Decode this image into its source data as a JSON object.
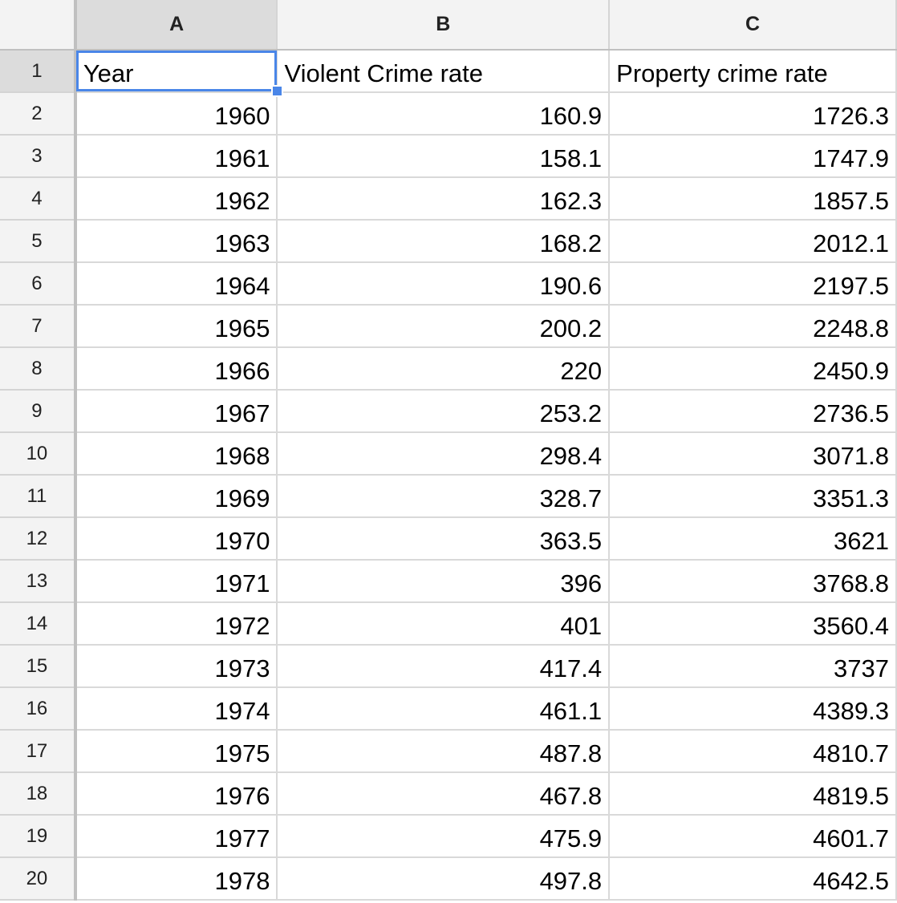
{
  "columns": [
    "A",
    "B",
    "C"
  ],
  "selected_cell": "A1",
  "accent_color": "#4a86e8",
  "rows": [
    {
      "num": "1",
      "cells": [
        "Year",
        "Violent Crime rate",
        "Property crime rate"
      ]
    },
    {
      "num": "2",
      "cells": [
        "1960",
        "160.9",
        "1726.3"
      ]
    },
    {
      "num": "3",
      "cells": [
        "1961",
        "158.1",
        "1747.9"
      ]
    },
    {
      "num": "4",
      "cells": [
        "1962",
        "162.3",
        "1857.5"
      ]
    },
    {
      "num": "5",
      "cells": [
        "1963",
        "168.2",
        "2012.1"
      ]
    },
    {
      "num": "6",
      "cells": [
        "1964",
        "190.6",
        "2197.5"
      ]
    },
    {
      "num": "7",
      "cells": [
        "1965",
        "200.2",
        "2248.8"
      ]
    },
    {
      "num": "8",
      "cells": [
        "1966",
        "220",
        "2450.9"
      ]
    },
    {
      "num": "9",
      "cells": [
        "1967",
        "253.2",
        "2736.5"
      ]
    },
    {
      "num": "10",
      "cells": [
        "1968",
        "298.4",
        "3071.8"
      ]
    },
    {
      "num": "11",
      "cells": [
        "1969",
        "328.7",
        "3351.3"
      ]
    },
    {
      "num": "12",
      "cells": [
        "1970",
        "363.5",
        "3621"
      ]
    },
    {
      "num": "13",
      "cells": [
        "1971",
        "396",
        "3768.8"
      ]
    },
    {
      "num": "14",
      "cells": [
        "1972",
        "401",
        "3560.4"
      ]
    },
    {
      "num": "15",
      "cells": [
        "1973",
        "417.4",
        "3737"
      ]
    },
    {
      "num": "16",
      "cells": [
        "1974",
        "461.1",
        "4389.3"
      ]
    },
    {
      "num": "17",
      "cells": [
        "1975",
        "487.8",
        "4810.7"
      ]
    },
    {
      "num": "18",
      "cells": [
        "1976",
        "467.8",
        "4819.5"
      ]
    },
    {
      "num": "19",
      "cells": [
        "1977",
        "475.9",
        "4601.7"
      ]
    },
    {
      "num": "20",
      "cells": [
        "1978",
        "497.8",
        "4642.5"
      ]
    }
  ]
}
